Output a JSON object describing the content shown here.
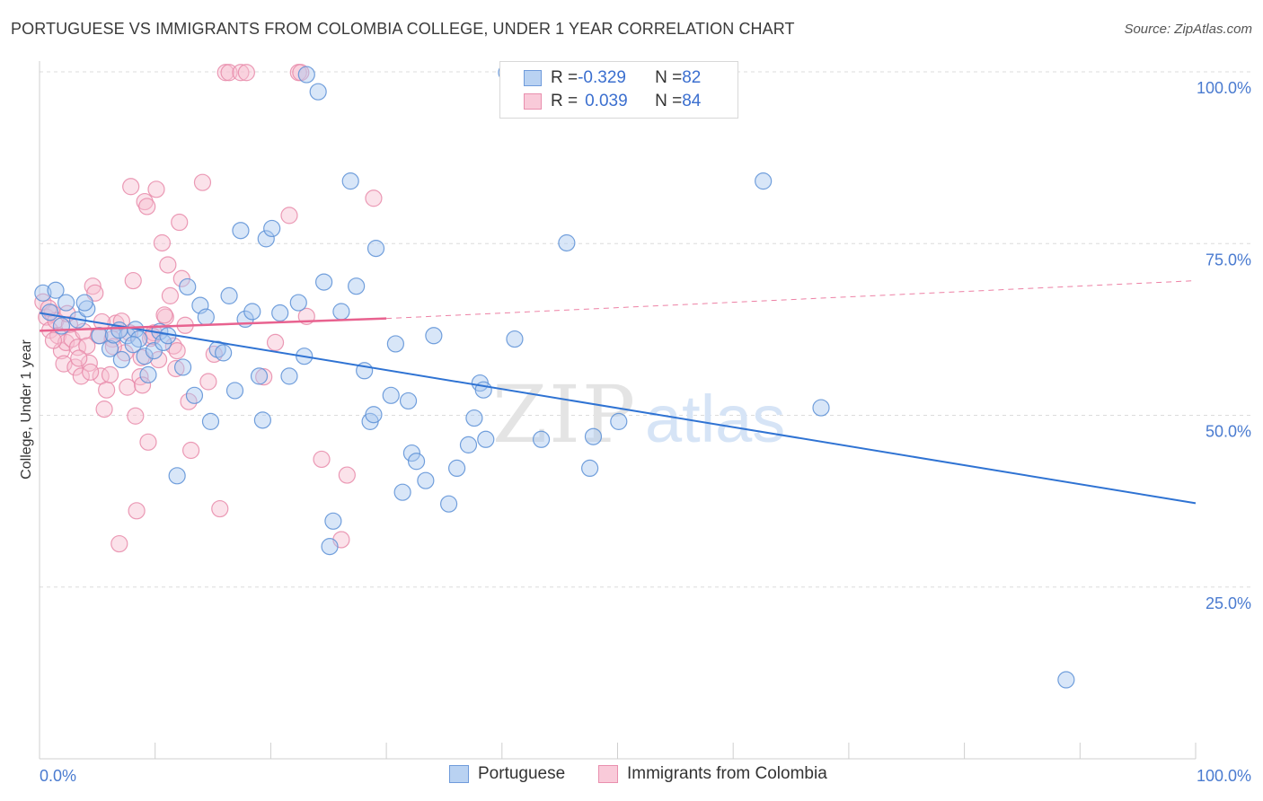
{
  "title": "PORTUGUESE VS IMMIGRANTS FROM COLOMBIA COLLEGE, UNDER 1 YEAR CORRELATION CHART",
  "source": "Source: ZipAtlas.com",
  "watermark": {
    "zip": "ZIP",
    "atlas": "atlas"
  },
  "legend": {
    "portuguese": {
      "r_label": "R = ",
      "r_value": "-0.329",
      "n_label": "N = ",
      "n_value": "82"
    },
    "colombia": {
      "r_label": "R = ",
      "r_value": "0.039",
      "n_label": "N = ",
      "n_value": "84"
    }
  },
  "bottom_legend": {
    "portuguese": "Portuguese",
    "colombia": "Immigrants from Colombia"
  },
  "colors": {
    "blue_fill": "#a9c7f0",
    "blue_stroke": "#5b8fd6",
    "blue_line": "#2f73d3",
    "pink_fill": "#f7bfd1",
    "pink_stroke": "#e889a9",
    "pink_line": "#e8628f",
    "grid": "#dcdcdc",
    "tick_text": "#4a7bd0"
  },
  "chart_data": {
    "type": "scatter",
    "ylabel": "College, Under 1 year",
    "xlim": [
      0,
      100
    ],
    "ylim": [
      0,
      100
    ],
    "x_ticks": [
      "0.0%",
      "100.0%"
    ],
    "y_ticks": [
      {
        "value": 100,
        "label": "100.0%"
      },
      {
        "value": 75,
        "label": "75.0%"
      },
      {
        "value": 50,
        "label": "50.0%"
      },
      {
        "value": 25,
        "label": "25.0%"
      }
    ],
    "grid": true,
    "legend_position": "top-center",
    "series": [
      {
        "name": "Portuguese",
        "color": "#5b8fd6",
        "trend": {
          "x0": 0,
          "y0": 64.9,
          "x1": 100,
          "y1": 37.2
        },
        "points": [
          [
            0.3,
            67.8
          ],
          [
            1.4,
            68.2
          ],
          [
            2.3,
            66.4
          ],
          [
            3.3,
            63.9
          ],
          [
            4.1,
            65.5
          ],
          [
            5.2,
            61.6
          ],
          [
            6.1,
            59.7
          ],
          [
            6.4,
            61.7
          ],
          [
            7.1,
            58.1
          ],
          [
            7.6,
            61.6
          ],
          [
            8.3,
            62.5
          ],
          [
            8.6,
            61.1
          ],
          [
            9.1,
            58.6
          ],
          [
            9.4,
            55.9
          ],
          [
            9.9,
            59.4
          ],
          [
            10.4,
            62.2
          ],
          [
            10.7,
            60.6
          ],
          [
            11.1,
            61.6
          ],
          [
            11.9,
            41.2
          ],
          [
            12.4,
            57.0
          ],
          [
            12.8,
            68.7
          ],
          [
            13.4,
            52.9
          ],
          [
            13.9,
            66.0
          ],
          [
            14.4,
            64.3
          ],
          [
            14.8,
            49.1
          ],
          [
            15.4,
            59.6
          ],
          [
            15.9,
            59.1
          ],
          [
            16.4,
            67.4
          ],
          [
            16.9,
            53.6
          ],
          [
            17.4,
            76.9
          ],
          [
            17.8,
            64.0
          ],
          [
            18.4,
            65.1
          ],
          [
            19.0,
            55.7
          ],
          [
            19.3,
            49.3
          ],
          [
            19.6,
            75.7
          ],
          [
            20.1,
            77.2
          ],
          [
            20.8,
            64.9
          ],
          [
            21.6,
            55.7
          ],
          [
            22.4,
            66.4
          ],
          [
            22.9,
            58.6
          ],
          [
            23.1,
            99.6
          ],
          [
            24.1,
            97.1
          ],
          [
            24.6,
            69.4
          ],
          [
            25.1,
            30.9
          ],
          [
            25.4,
            34.6
          ],
          [
            26.1,
            65.1
          ],
          [
            26.9,
            84.1
          ],
          [
            27.4,
            68.8
          ],
          [
            28.1,
            56.5
          ],
          [
            28.6,
            49.1
          ],
          [
            28.9,
            50.1
          ],
          [
            29.1,
            74.3
          ],
          [
            30.4,
            52.9
          ],
          [
            30.8,
            60.4
          ],
          [
            31.4,
            38.8
          ],
          [
            31.9,
            52.1
          ],
          [
            32.2,
            44.5
          ],
          [
            32.6,
            43.3
          ],
          [
            33.4,
            40.5
          ],
          [
            34.1,
            61.6
          ],
          [
            35.4,
            37.1
          ],
          [
            36.1,
            42.3
          ],
          [
            37.1,
            45.7
          ],
          [
            37.6,
            49.6
          ],
          [
            38.1,
            54.7
          ],
          [
            38.4,
            53.7
          ],
          [
            38.6,
            46.5
          ],
          [
            40.4,
            99.9
          ],
          [
            41.1,
            61.1
          ],
          [
            43.4,
            46.5
          ],
          [
            45.6,
            75.1
          ],
          [
            47.6,
            42.3
          ],
          [
            47.9,
            46.9
          ],
          [
            50.1,
            49.1
          ],
          [
            62.6,
            84.1
          ],
          [
            67.6,
            51.1
          ],
          [
            88.8,
            11.5
          ],
          [
            0.9,
            65.0
          ],
          [
            1.9,
            63.0
          ],
          [
            3.9,
            66.4
          ],
          [
            8.1,
            60.3
          ],
          [
            6.9,
            62.4
          ]
        ]
      },
      {
        "name": "Immigrants from Colombia",
        "color": "#e889a9",
        "trend": {
          "x0": 0,
          "y0": 62.3,
          "x1": 30,
          "y1": 64.1,
          "dash_to_x": 100,
          "dash_to_y": 69.6
        },
        "points": [
          [
            0.3,
            66.5
          ],
          [
            0.6,
            64.3
          ],
          [
            0.9,
            62.4
          ],
          [
            1.1,
            64.9
          ],
          [
            1.4,
            63.8
          ],
          [
            1.6,
            61.6
          ],
          [
            1.9,
            59.4
          ],
          [
            2.1,
            57.5
          ],
          [
            2.3,
            60.6
          ],
          [
            2.6,
            63.2
          ],
          [
            2.8,
            61.1
          ],
          [
            3.1,
            57.0
          ],
          [
            3.3,
            59.9
          ],
          [
            3.6,
            55.7
          ],
          [
            3.8,
            62.2
          ],
          [
            4.1,
            60.1
          ],
          [
            4.3,
            57.6
          ],
          [
            4.6,
            68.8
          ],
          [
            4.8,
            67.8
          ],
          [
            5.1,
            61.6
          ],
          [
            5.3,
            55.7
          ],
          [
            5.6,
            50.9
          ],
          [
            5.8,
            53.7
          ],
          [
            6.1,
            55.9
          ],
          [
            6.3,
            61.1
          ],
          [
            6.6,
            63.4
          ],
          [
            6.9,
            31.3
          ],
          [
            7.1,
            63.7
          ],
          [
            7.4,
            59.1
          ],
          [
            7.6,
            54.1
          ],
          [
            7.9,
            83.3
          ],
          [
            8.1,
            69.6
          ],
          [
            8.3,
            49.9
          ],
          [
            8.4,
            36.1
          ],
          [
            8.7,
            55.6
          ],
          [
            8.9,
            54.4
          ],
          [
            9.1,
            81.1
          ],
          [
            9.3,
            80.4
          ],
          [
            9.4,
            46.1
          ],
          [
            9.6,
            61.2
          ],
          [
            9.9,
            62.0
          ],
          [
            10.1,
            82.9
          ],
          [
            10.3,
            58.1
          ],
          [
            10.6,
            75.1
          ],
          [
            10.9,
            64.3
          ],
          [
            11.1,
            71.9
          ],
          [
            11.3,
            67.4
          ],
          [
            11.6,
            60.1
          ],
          [
            11.9,
            59.4
          ],
          [
            12.1,
            78.1
          ],
          [
            12.3,
            69.9
          ],
          [
            12.6,
            63.1
          ],
          [
            12.9,
            52.0
          ],
          [
            13.1,
            44.9
          ],
          [
            14.1,
            83.9
          ],
          [
            14.6,
            54.9
          ],
          [
            15.1,
            58.9
          ],
          [
            15.6,
            36.4
          ],
          [
            16.1,
            99.9
          ],
          [
            16.4,
            99.9
          ],
          [
            17.4,
            99.9
          ],
          [
            17.9,
            99.9
          ],
          [
            19.4,
            55.6
          ],
          [
            20.4,
            60.6
          ],
          [
            21.6,
            79.1
          ],
          [
            22.4,
            99.9
          ],
          [
            22.6,
            99.9
          ],
          [
            23.1,
            64.4
          ],
          [
            24.4,
            43.6
          ],
          [
            26.1,
            31.9
          ],
          [
            26.6,
            41.3
          ],
          [
            28.9,
            81.6
          ],
          [
            0.8,
            65.6
          ],
          [
            1.2,
            60.9
          ],
          [
            2.4,
            64.8
          ],
          [
            3.4,
            58.3
          ],
          [
            4.4,
            56.3
          ],
          [
            5.4,
            63.6
          ],
          [
            6.4,
            60.0
          ],
          [
            7.8,
            62.0
          ],
          [
            8.8,
            58.4
          ],
          [
            9.8,
            61.5
          ],
          [
            10.8,
            64.6
          ],
          [
            11.8,
            56.8
          ]
        ]
      }
    ]
  }
}
